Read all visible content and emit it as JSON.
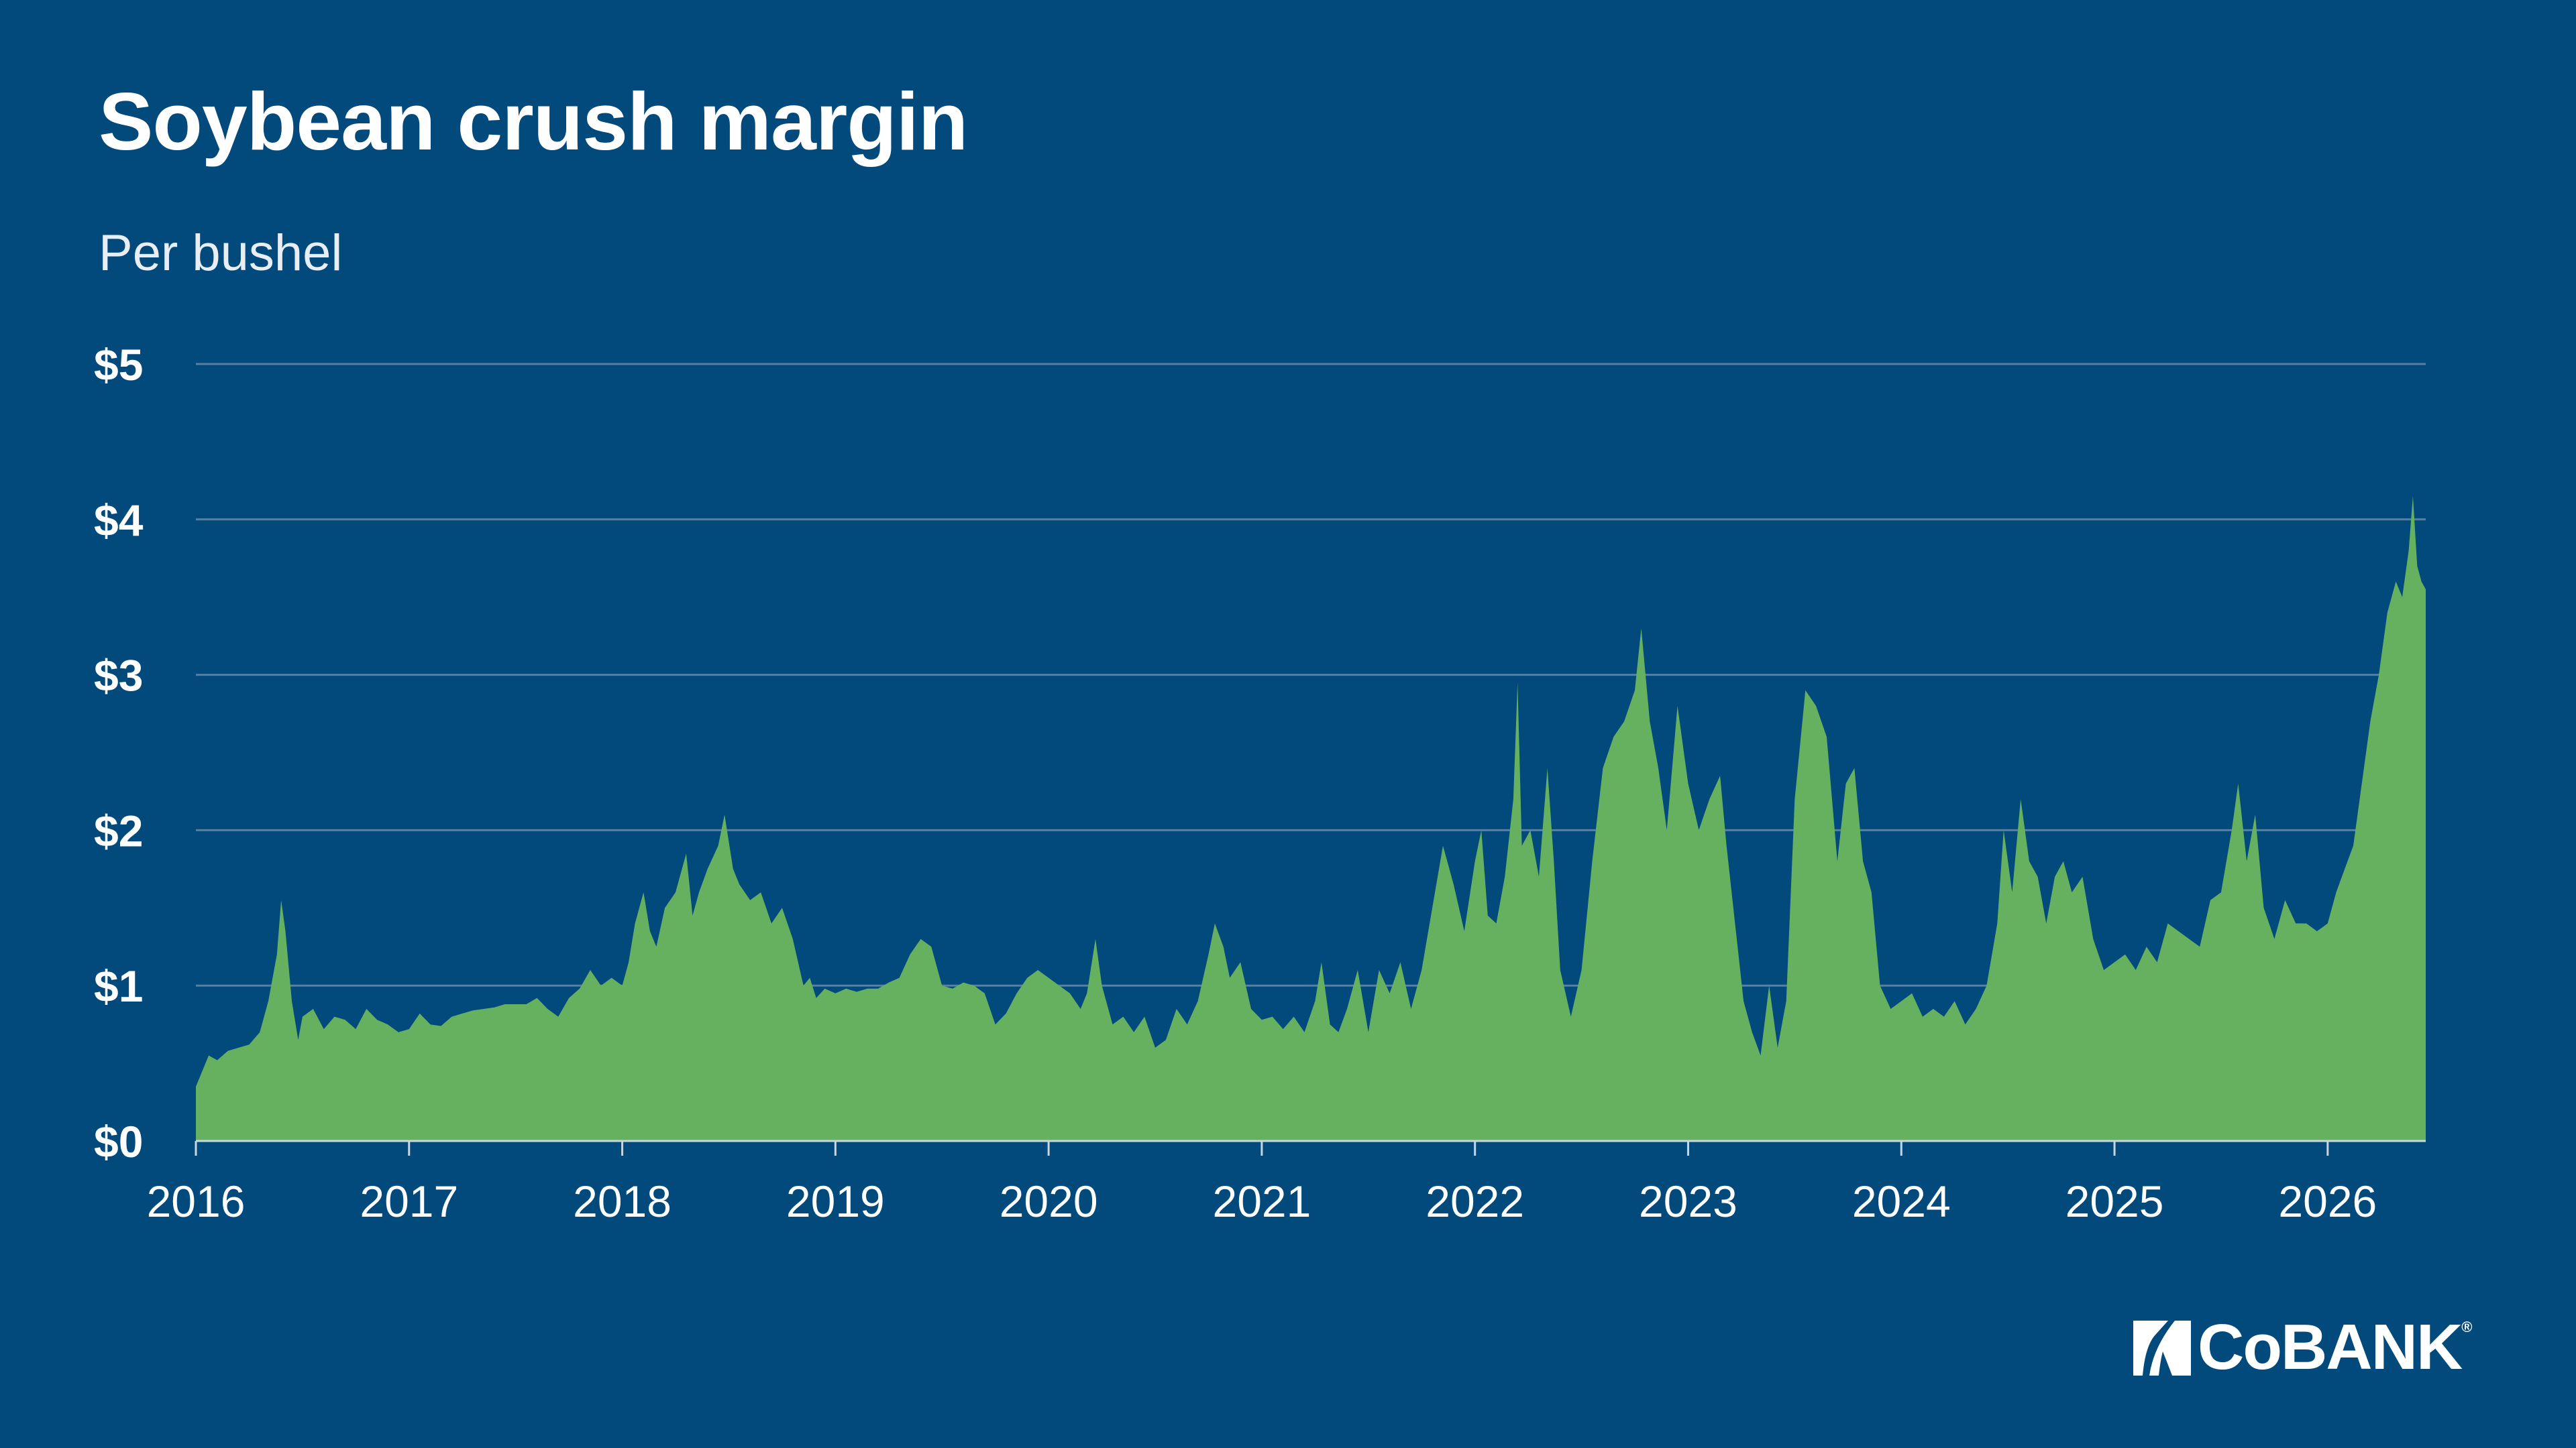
{
  "chart_data": {
    "type": "area",
    "title": "Soybean crush margin",
    "subtitle": "Per bushel",
    "xlabel": "",
    "ylabel": "",
    "ylim": [
      0,
      5
    ],
    "xlim": [
      2016,
      2026.46
    ],
    "x_ticks": [
      "2016",
      "2017",
      "2018",
      "2019",
      "2020",
      "2021",
      "2022",
      "2023",
      "2024",
      "2025",
      "2026"
    ],
    "y_ticks": [
      "$0",
      "$1",
      "$2",
      "$3",
      "$4",
      "$5"
    ],
    "grid": "horizontal",
    "legend": "none",
    "series": [
      {
        "values": [
          [
            2016.0,
            0.35
          ],
          [
            2016.03,
            0.45
          ],
          [
            2016.06,
            0.55
          ],
          [
            2016.1,
            0.52
          ],
          [
            2016.15,
            0.58
          ],
          [
            2016.2,
            0.6
          ],
          [
            2016.25,
            0.62
          ],
          [
            2016.3,
            0.7
          ],
          [
            2016.34,
            0.9
          ],
          [
            2016.38,
            1.2
          ],
          [
            2016.4,
            1.55
          ],
          [
            2016.42,
            1.35
          ],
          [
            2016.45,
            0.9
          ],
          [
            2016.48,
            0.65
          ],
          [
            2016.5,
            0.8
          ],
          [
            2016.55,
            0.85
          ],
          [
            2016.6,
            0.72
          ],
          [
            2016.65,
            0.8
          ],
          [
            2016.7,
            0.78
          ],
          [
            2016.75,
            0.72
          ],
          [
            2016.8,
            0.85
          ],
          [
            2016.85,
            0.78
          ],
          [
            2016.9,
            0.75
          ],
          [
            2016.95,
            0.7
          ],
          [
            2017.0,
            0.72
          ],
          [
            2017.05,
            0.82
          ],
          [
            2017.1,
            0.75
          ],
          [
            2017.15,
            0.74
          ],
          [
            2017.2,
            0.8
          ],
          [
            2017.25,
            0.82
          ],
          [
            2017.3,
            0.84
          ],
          [
            2017.35,
            0.85
          ],
          [
            2017.4,
            0.86
          ],
          [
            2017.45,
            0.88
          ],
          [
            2017.5,
            0.88
          ],
          [
            2017.55,
            0.88
          ],
          [
            2017.6,
            0.92
          ],
          [
            2017.65,
            0.85
          ],
          [
            2017.7,
            0.8
          ],
          [
            2017.75,
            0.92
          ],
          [
            2017.8,
            0.98
          ],
          [
            2017.85,
            1.1
          ],
          [
            2017.9,
            1.0
          ],
          [
            2017.95,
            1.05
          ],
          [
            2018.0,
            1.0
          ],
          [
            2018.03,
            1.15
          ],
          [
            2018.06,
            1.4
          ],
          [
            2018.1,
            1.6
          ],
          [
            2018.13,
            1.35
          ],
          [
            2018.16,
            1.25
          ],
          [
            2018.2,
            1.5
          ],
          [
            2018.25,
            1.6
          ],
          [
            2018.3,
            1.85
          ],
          [
            2018.33,
            1.45
          ],
          [
            2018.36,
            1.6
          ],
          [
            2018.4,
            1.75
          ],
          [
            2018.45,
            1.9
          ],
          [
            2018.48,
            2.1
          ],
          [
            2018.52,
            1.75
          ],
          [
            2018.55,
            1.65
          ],
          [
            2018.6,
            1.55
          ],
          [
            2018.65,
            1.6
          ],
          [
            2018.7,
            1.4
          ],
          [
            2018.75,
            1.5
          ],
          [
            2018.8,
            1.3
          ],
          [
            2018.85,
            1.0
          ],
          [
            2018.88,
            1.05
          ],
          [
            2018.91,
            0.92
          ],
          [
            2018.95,
            0.98
          ],
          [
            2019.0,
            0.95
          ],
          [
            2019.05,
            0.98
          ],
          [
            2019.1,
            0.96
          ],
          [
            2019.15,
            0.98
          ],
          [
            2019.2,
            0.98
          ],
          [
            2019.25,
            1.02
          ],
          [
            2019.3,
            1.05
          ],
          [
            2019.35,
            1.2
          ],
          [
            2019.4,
            1.3
          ],
          [
            2019.45,
            1.25
          ],
          [
            2019.5,
            1.0
          ],
          [
            2019.55,
            0.98
          ],
          [
            2019.6,
            1.02
          ],
          [
            2019.65,
            1.0
          ],
          [
            2019.7,
            0.95
          ],
          [
            2019.75,
            0.75
          ],
          [
            2019.8,
            0.82
          ],
          [
            2019.85,
            0.95
          ],
          [
            2019.9,
            1.05
          ],
          [
            2019.95,
            1.1
          ],
          [
            2020.0,
            1.05
          ],
          [
            2020.05,
            1.0
          ],
          [
            2020.1,
            0.95
          ],
          [
            2020.15,
            0.85
          ],
          [
            2020.18,
            0.95
          ],
          [
            2020.22,
            1.3
          ],
          [
            2020.25,
            1.0
          ],
          [
            2020.3,
            0.75
          ],
          [
            2020.35,
            0.8
          ],
          [
            2020.4,
            0.7
          ],
          [
            2020.45,
            0.8
          ],
          [
            2020.5,
            0.6
          ],
          [
            2020.55,
            0.65
          ],
          [
            2020.6,
            0.85
          ],
          [
            2020.65,
            0.75
          ],
          [
            2020.7,
            0.9
          ],
          [
            2020.75,
            1.2
          ],
          [
            2020.78,
            1.4
          ],
          [
            2020.82,
            1.25
          ],
          [
            2020.85,
            1.05
          ],
          [
            2020.9,
            1.15
          ],
          [
            2020.95,
            0.85
          ],
          [
            2021.0,
            0.78
          ],
          [
            2021.05,
            0.8
          ],
          [
            2021.1,
            0.72
          ],
          [
            2021.15,
            0.8
          ],
          [
            2021.2,
            0.7
          ],
          [
            2021.25,
            0.9
          ],
          [
            2021.28,
            1.15
          ],
          [
            2021.32,
            0.75
          ],
          [
            2021.36,
            0.7
          ],
          [
            2021.4,
            0.85
          ],
          [
            2021.45,
            1.1
          ],
          [
            2021.5,
            0.7
          ],
          [
            2021.55,
            1.1
          ],
          [
            2021.6,
            0.95
          ],
          [
            2021.65,
            1.15
          ],
          [
            2021.7,
            0.85
          ],
          [
            2021.75,
            1.1
          ],
          [
            2021.8,
            1.5
          ],
          [
            2021.85,
            1.9
          ],
          [
            2021.9,
            1.65
          ],
          [
            2021.95,
            1.35
          ],
          [
            2022.0,
            1.8
          ],
          [
            2022.03,
            2.0
          ],
          [
            2022.06,
            1.45
          ],
          [
            2022.1,
            1.4
          ],
          [
            2022.14,
            1.7
          ],
          [
            2022.18,
            2.2
          ],
          [
            2022.2,
            2.95
          ],
          [
            2022.22,
            1.9
          ],
          [
            2022.26,
            2.0
          ],
          [
            2022.3,
            1.7
          ],
          [
            2022.34,
            2.4
          ],
          [
            2022.37,
            1.8
          ],
          [
            2022.4,
            1.1
          ],
          [
            2022.45,
            0.8
          ],
          [
            2022.5,
            1.1
          ],
          [
            2022.55,
            1.8
          ],
          [
            2022.6,
            2.4
          ],
          [
            2022.65,
            2.6
          ],
          [
            2022.7,
            2.7
          ],
          [
            2022.75,
            2.9
          ],
          [
            2022.78,
            3.3
          ],
          [
            2022.82,
            2.7
          ],
          [
            2022.86,
            2.4
          ],
          [
            2022.9,
            2.0
          ],
          [
            2022.95,
            2.8
          ],
          [
            2023.0,
            2.3
          ],
          [
            2023.05,
            2.0
          ],
          [
            2023.1,
            2.2
          ],
          [
            2023.15,
            2.35
          ],
          [
            2023.18,
            1.9
          ],
          [
            2023.22,
            1.4
          ],
          [
            2023.26,
            0.9
          ],
          [
            2023.3,
            0.7
          ],
          [
            2023.34,
            0.55
          ],
          [
            2023.38,
            1.0
          ],
          [
            2023.42,
            0.6
          ],
          [
            2023.46,
            0.9
          ],
          [
            2023.5,
            2.2
          ],
          [
            2023.55,
            2.9
          ],
          [
            2023.6,
            2.8
          ],
          [
            2023.65,
            2.6
          ],
          [
            2023.7,
            1.8
          ],
          [
            2023.74,
            2.3
          ],
          [
            2023.78,
            2.4
          ],
          [
            2023.82,
            1.8
          ],
          [
            2023.86,
            1.6
          ],
          [
            2023.9,
            1.0
          ],
          [
            2023.95,
            0.85
          ],
          [
            2024.0,
            0.9
          ],
          [
            2024.05,
            0.95
          ],
          [
            2024.1,
            0.8
          ],
          [
            2024.15,
            0.85
          ],
          [
            2024.2,
            0.8
          ],
          [
            2024.25,
            0.9
          ],
          [
            2024.3,
            0.75
          ],
          [
            2024.35,
            0.85
          ],
          [
            2024.4,
            1.0
          ],
          [
            2024.45,
            1.4
          ],
          [
            2024.48,
            2.0
          ],
          [
            2024.52,
            1.6
          ],
          [
            2024.56,
            2.2
          ],
          [
            2024.6,
            1.8
          ],
          [
            2024.64,
            1.7
          ],
          [
            2024.68,
            1.4
          ],
          [
            2024.72,
            1.7
          ],
          [
            2024.76,
            1.8
          ],
          [
            2024.8,
            1.6
          ],
          [
            2024.85,
            1.7
          ],
          [
            2024.9,
            1.3
          ],
          [
            2024.95,
            1.1
          ],
          [
            2025.0,
            1.15
          ],
          [
            2025.05,
            1.2
          ],
          [
            2025.1,
            1.1
          ],
          [
            2025.15,
            1.25
          ],
          [
            2025.2,
            1.15
          ],
          [
            2025.25,
            1.4
          ],
          [
            2025.3,
            1.35
          ],
          [
            2025.35,
            1.3
          ],
          [
            2025.4,
            1.25
          ],
          [
            2025.45,
            1.55
          ],
          [
            2025.5,
            1.6
          ],
          [
            2025.55,
            2.0
          ],
          [
            2025.58,
            2.3
          ],
          [
            2025.62,
            1.8
          ],
          [
            2025.66,
            2.1
          ],
          [
            2025.7,
            1.5
          ],
          [
            2025.75,
            1.3
          ],
          [
            2025.8,
            1.55
          ],
          [
            2025.85,
            1.4
          ],
          [
            2025.9,
            1.4
          ],
          [
            2025.95,
            1.35
          ],
          [
            2026.0,
            1.4
          ],
          [
            2026.04,
            1.6
          ],
          [
            2026.08,
            1.75
          ],
          [
            2026.12,
            1.9
          ],
          [
            2026.16,
            2.3
          ],
          [
            2026.2,
            2.7
          ],
          [
            2026.24,
            3.0
          ],
          [
            2026.28,
            3.4
          ],
          [
            2026.32,
            3.6
          ],
          [
            2026.35,
            3.5
          ],
          [
            2026.38,
            3.8
          ],
          [
            2026.4,
            4.15
          ],
          [
            2026.42,
            3.7
          ],
          [
            2026.44,
            3.6
          ],
          [
            2026.46,
            3.55
          ]
        ]
      }
    ],
    "colors": {
      "background": "#024a7c",
      "area": "#66b160",
      "grid": "#5b7f9d",
      "text": "#ffffff"
    }
  },
  "brand": {
    "name": "CoBANK",
    "reg": "®"
  }
}
